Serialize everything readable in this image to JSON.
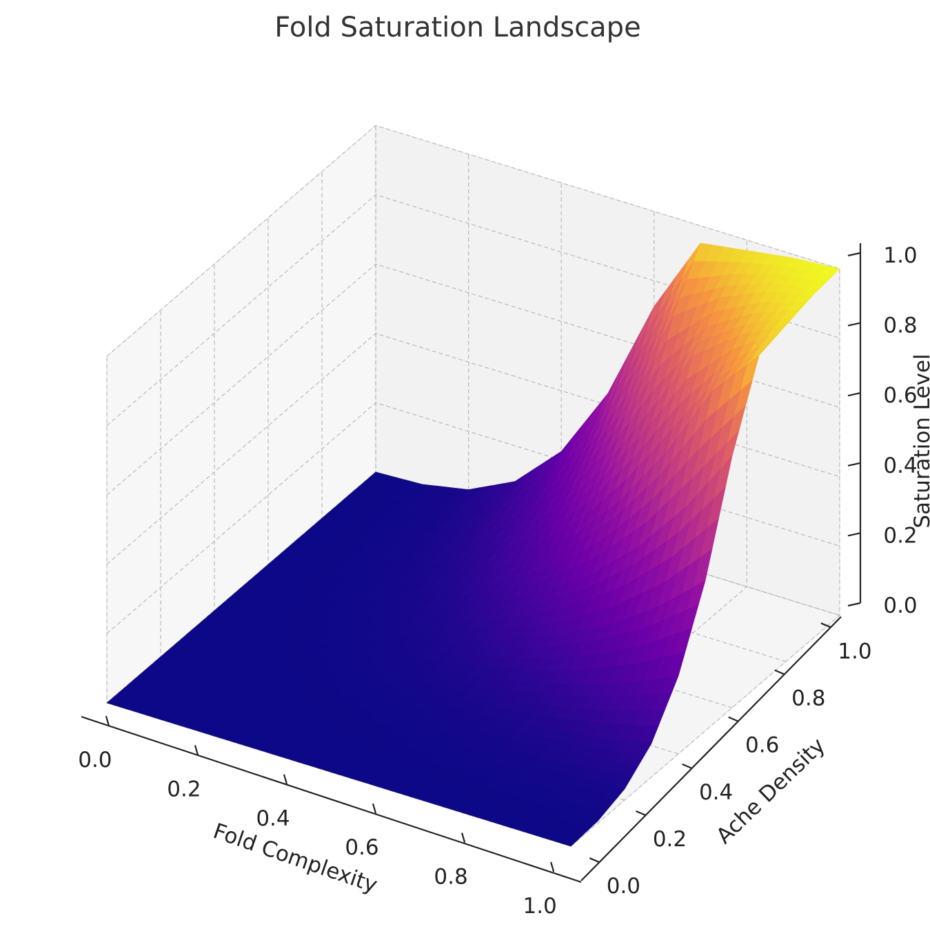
{
  "chart_data": {
    "type": "surface3d",
    "title": "Fold Saturation Landscape",
    "xlabel": "Fold Complexity",
    "ylabel": "Ache Density",
    "zlabel": "Saturation Level",
    "x_range": [
      0,
      1
    ],
    "y_range": [
      0,
      1
    ],
    "zlim": [
      0,
      1
    ],
    "x_ticks": [
      "0.0",
      "0.2",
      "0.4",
      "0.6",
      "0.8",
      "1.0"
    ],
    "y_ticks": [
      "0.0",
      "0.2",
      "0.4",
      "0.6",
      "0.8",
      "1.0"
    ],
    "z_ticks": [
      "0.0",
      "0.2",
      "0.4",
      "0.6",
      "0.8",
      "1.0"
    ],
    "x_values": [
      0,
      0.1,
      0.2,
      0.3,
      0.4,
      0.5,
      0.6,
      0.7,
      0.8,
      0.9,
      1.0
    ],
    "y_values": [
      0,
      0.1,
      0.2,
      0.3,
      0.4,
      0.5,
      0.6,
      0.7,
      0.8,
      0.9,
      1.0
    ],
    "z_values": [
      [
        0,
        0,
        0,
        0,
        0,
        0,
        0,
        0,
        0,
        0,
        0
      ],
      [
        0,
        0,
        0,
        0,
        0,
        0.001,
        0.001,
        0.002,
        0.003,
        0.004,
        0.006
      ],
      [
        0,
        0,
        0,
        0.001,
        0.002,
        0.004,
        0.007,
        0.011,
        0.016,
        0.023,
        0.032
      ],
      [
        0,
        0,
        0.001,
        0.003,
        0.007,
        0.013,
        0.022,
        0.034,
        0.05,
        0.071,
        0.097
      ],
      [
        0,
        0,
        0.002,
        0.007,
        0.016,
        0.031,
        0.051,
        0.079,
        0.116,
        0.164,
        0.225
      ],
      [
        0,
        0.001,
        0.004,
        0.013,
        0.031,
        0.059,
        0.1,
        0.155,
        0.226,
        0.318,
        0.433
      ],
      [
        0,
        0.001,
        0.007,
        0.022,
        0.051,
        0.1,
        0.17,
        0.263,
        0.384,
        0.537,
        0.726
      ],
      [
        0,
        0.002,
        0.011,
        0.034,
        0.079,
        0.155,
        0.263,
        0.406,
        0.588,
        0.807,
        0.95
      ],
      [
        0,
        0.003,
        0.016,
        0.05,
        0.116,
        0.226,
        0.384,
        0.588,
        0.8,
        0.9,
        0.97
      ],
      [
        0,
        0.004,
        0.023,
        0.071,
        0.164,
        0.318,
        0.537,
        0.807,
        0.9,
        0.96,
        0.99
      ],
      [
        0,
        0.006,
        0.032,
        0.097,
        0.225,
        0.433,
        0.726,
        0.95,
        0.97,
        0.99,
        1.0
      ]
    ],
    "colormap": "plasma",
    "grid": true,
    "pane_color": "#f2f2f2"
  }
}
